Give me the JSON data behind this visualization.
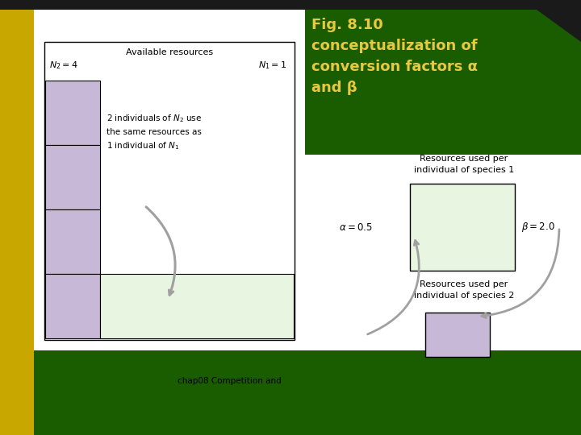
{
  "bg_white": "#ffffff",
  "olive_color": "#c8a800",
  "dark_green": "#1a5c00",
  "title_yellow": "#e8c840",
  "lavender": "#c8b8d8",
  "light_green_box": "#e8f5e0",
  "arrow_gray": "#a0a0a0",
  "black": "#000000",
  "dark_top": "#1a1a1a",
  "title_line1": "Fig. 8.10",
  "title_line2": "conceptualization of",
  "title_line3": "conversion factors α",
  "title_line4": "and β",
  "footer": "chap08 Competition and"
}
